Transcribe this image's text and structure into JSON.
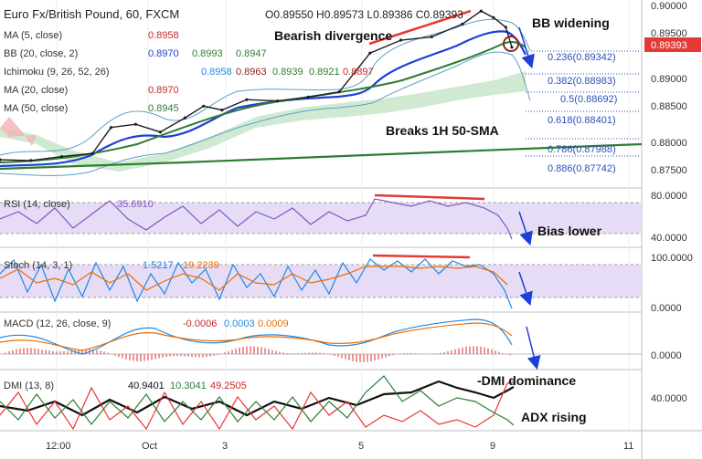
{
  "header": {
    "symbol": "Euro Fx/British Pound, 60, FXCM",
    "ohlc": "O0.89550  H0.89573  L0.89386  C0.89393"
  },
  "indicators": [
    {
      "label": "MA (5, close)",
      "values": [
        "0.8958"
      ],
      "colors": [
        "#c62828"
      ]
    },
    {
      "label": "BB (20, close, 2)",
      "values": [
        "0.8970",
        "0.8993",
        "0.8947"
      ],
      "colors": [
        "#1e3fd8",
        "#2e7d32",
        "#2e7d32"
      ]
    },
    {
      "label": "Ichimoku (9, 26, 52, 26)",
      "values": [
        "0.8958",
        "0.8963",
        "0.8939",
        "0.8921",
        "0.8897"
      ],
      "colors": [
        "#1e88e5",
        "#8e2424",
        "#2e7d32",
        "#2e7d32",
        "#c62828"
      ]
    },
    {
      "label": "MA (20, close)",
      "values": [
        "0.8970"
      ],
      "colors": [
        "#c62828"
      ]
    },
    {
      "label": "MA (50, close)",
      "values": [
        "0.8945"
      ],
      "colors": [
        "#2e7d32"
      ]
    }
  ],
  "price_axis": [
    "0.90000",
    "0.89500",
    "0.89000",
    "0.88500",
    "0.88000",
    "0.87500"
  ],
  "last_price": "0.89393",
  "fib_levels": [
    "0.236(0.89342)",
    "0.382(0.88983)",
    "0.5(0.88692)",
    "0.618(0.88401)",
    "0.786(0.87988)",
    "0.886(0.87742)"
  ],
  "annotations": {
    "bearish_divergence": "Bearish divergence",
    "bb_widening": "BB widening",
    "breaks_sma": "Breaks 1H 50-SMA",
    "bias_lower": "Bias lower",
    "dmi_dominance": "-DMI dominance",
    "adx_rising": "ADX rising"
  },
  "panes": {
    "rsi": {
      "label": "RSI (14, close)",
      "value": "35.6910",
      "axis": [
        "80.0000",
        "40.0000"
      ]
    },
    "stoch": {
      "label": "Stoch (14, 3, 1)",
      "values": [
        "1.5217",
        "19.2239"
      ],
      "axis": [
        "100.0000",
        "0.0000"
      ]
    },
    "macd": {
      "label": "MACD (12, 26, close, 9)",
      "values": [
        "-0.0006",
        "0.0003",
        "0.0009"
      ],
      "axis": [
        "0.0000"
      ]
    },
    "dmi": {
      "label": "DMI (13, 8)",
      "values": [
        "40.9401",
        "10.3041",
        "49.2505"
      ],
      "axis": [
        "40.0000"
      ]
    }
  },
  "time_axis": [
    "12:00",
    "Oct",
    "3",
    "5",
    "9",
    "11"
  ],
  "colors": {
    "price_line": "#1e1e1e",
    "bb_basis": "#1e3fd8",
    "bb_band": "#5aa0c8",
    "sma50": "#2e7d32",
    "cloud": "#c8e6c9",
    "cloud_red": "#f4b6b6",
    "annotation_red": "#e53935",
    "arrow_blue": "#1e3fd8",
    "rsi_fill": "#e6dcf5",
    "rsi_line": "#7e57c2"
  },
  "chart_data": {
    "type": "line",
    "title": "Euro Fx/British Pound, 60, FXCM",
    "x_ticks": [
      "12:00",
      "Oct",
      "3",
      "5",
      "9",
      "11"
    ],
    "ylim": [
      0.8737,
      0.9005
    ],
    "price_series": [
      {
        "t": 0,
        "v": 0.8765
      },
      {
        "t": 5,
        "v": 0.8764
      },
      {
        "t": 10,
        "v": 0.877
      },
      {
        "t": 15,
        "v": 0.8775
      },
      {
        "t": 18,
        "v": 0.8815
      },
      {
        "t": 22,
        "v": 0.882
      },
      {
        "t": 26,
        "v": 0.8808
      },
      {
        "t": 30,
        "v": 0.883
      },
      {
        "t": 33,
        "v": 0.8848
      },
      {
        "t": 36,
        "v": 0.8842
      },
      {
        "t": 40,
        "v": 0.8858
      },
      {
        "t": 45,
        "v": 0.8856
      },
      {
        "t": 50,
        "v": 0.8862
      },
      {
        "t": 55,
        "v": 0.887
      },
      {
        "t": 60,
        "v": 0.893
      },
      {
        "t": 65,
        "v": 0.895
      },
      {
        "t": 70,
        "v": 0.8955
      },
      {
        "t": 75,
        "v": 0.8975
      },
      {
        "t": 78,
        "v": 0.8995
      },
      {
        "t": 80,
        "v": 0.8985
      },
      {
        "t": 82,
        "v": 0.897
      },
      {
        "t": 83,
        "v": 0.8939
      }
    ],
    "fib_levels": [
      {
        "ratio": 0.236,
        "price": 0.89342
      },
      {
        "ratio": 0.382,
        "price": 0.88983
      },
      {
        "ratio": 0.5,
        "price": 0.88692
      },
      {
        "ratio": 0.618,
        "price": 0.88401
      },
      {
        "ratio": 0.786,
        "price": 0.87988
      },
      {
        "ratio": 0.886,
        "price": 0.87742
      }
    ],
    "legend": "top-left",
    "grid": true
  }
}
